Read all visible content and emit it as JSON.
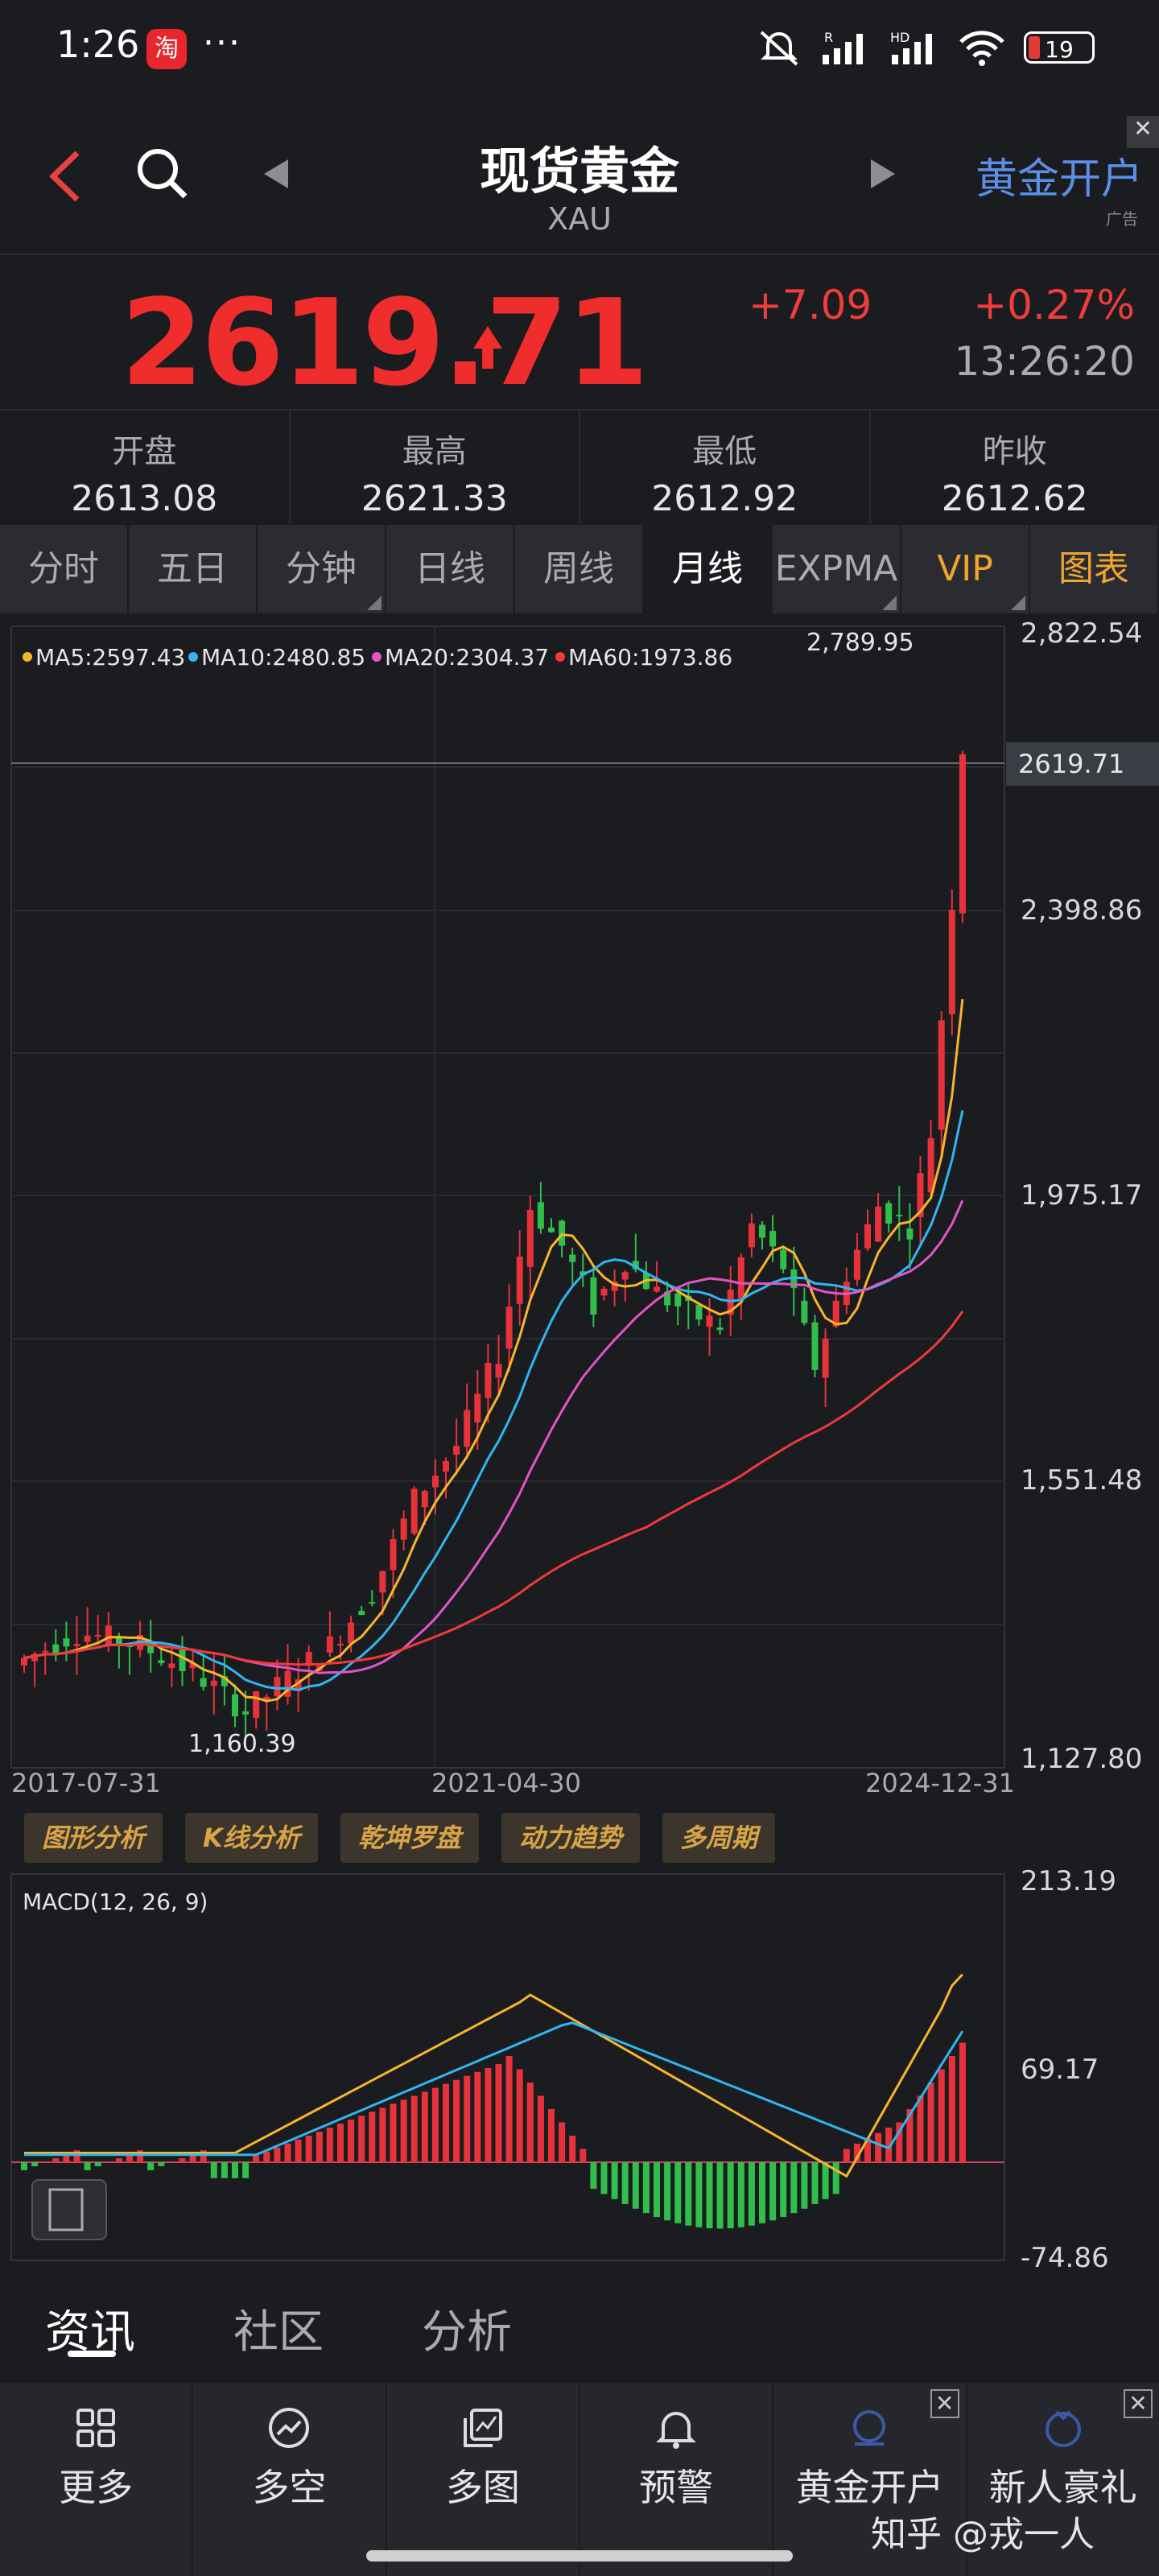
{
  "status": {
    "time": "1:26",
    "app_badge": "淘",
    "more": "···",
    "battery": "19"
  },
  "header": {
    "title": "现货黄金",
    "subtitle": "XAU",
    "right_label": "黄金开户",
    "ad_label": "广告"
  },
  "quote": {
    "price": "2619.71",
    "change": "+7.09",
    "change_pct": "+0.27%",
    "time": "13:26:20"
  },
  "stats": [
    {
      "label": "开盘",
      "value": "2613.08"
    },
    {
      "label": "最高",
      "value": "2621.33"
    },
    {
      "label": "最低",
      "value": "2612.92"
    },
    {
      "label": "昨收",
      "value": "2612.62"
    }
  ],
  "tabs": [
    "分时",
    "五日",
    "分钟",
    "日线",
    "周线",
    "月线",
    "EXPMA",
    "VIP",
    "图表"
  ],
  "ma_legend": [
    {
      "text": "MA5:2597.43",
      "color": "#f7b52c"
    },
    {
      "text": "MA10:2480.85",
      "color": "#2fb6f0"
    },
    {
      "text": "MA20:2304.37",
      "color": "#e055c8"
    },
    {
      "text": "MA60:1973.86",
      "color": "#f03a3a"
    }
  ],
  "price_axis": [
    "2,822.54",
    "2,398.86",
    "1,975.17",
    "1,551.48",
    "1,127.80"
  ],
  "current_tag": "2619.71",
  "annot_high": "2,789.95",
  "annot_low": "1,160.39",
  "dates": [
    "2017-07-31",
    "2021-04-30",
    "2024-12-31"
  ],
  "analysis_buttons": [
    "图形分析",
    "K线分析",
    "乾坤罗盘",
    "动力趋势",
    "多周期"
  ],
  "macd": {
    "label": "MACD(12, 26, 9)",
    "axis": [
      "213.19",
      "69.17",
      "-74.86"
    ]
  },
  "subtabs": [
    "资讯",
    "社区",
    "分析"
  ],
  "bottom_nav": [
    {
      "label": "更多",
      "icon": "grid-icon"
    },
    {
      "label": "多空",
      "icon": "trend-icon"
    },
    {
      "label": "多图",
      "icon": "multi-chart-icon"
    },
    {
      "label": "预警",
      "icon": "bell-icon"
    },
    {
      "label": "黄金开户",
      "icon": "gold-account-icon"
    },
    {
      "label": "新人豪礼",
      "icon": "gift-icon"
    }
  ],
  "watermark": "知乎 @戎一人"
}
